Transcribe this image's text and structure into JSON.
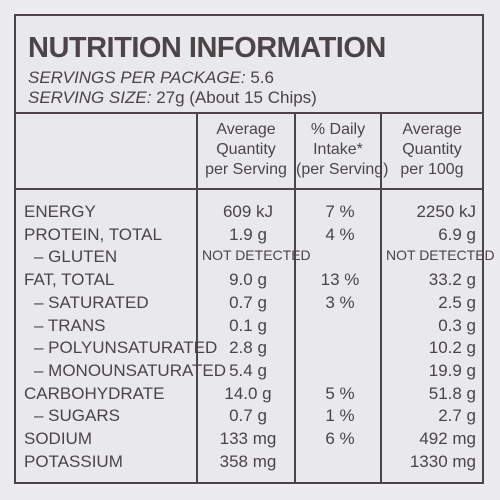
{
  "title": "NUTRITION INFORMATION",
  "servings": {
    "label": "SERVINGS PER PACKAGE:",
    "value": "5.6"
  },
  "serving_size": {
    "label": "SERVING SIZE:",
    "value": "27g (About 15 Chips)"
  },
  "columns": [
    {
      "lines": [
        "Average",
        "Quantity",
        "per Serving"
      ]
    },
    {
      "lines": [
        "% Daily",
        "Intake*",
        "(per Serving)"
      ]
    },
    {
      "lines": [
        "Average",
        "Quantity",
        "per 100g"
      ]
    }
  ],
  "rows": [
    {
      "name": "ENERGY",
      "per_serving": "609 kJ",
      "daily_intake": "7 %",
      "per_100g": "2250 kJ"
    },
    {
      "name": "PROTEIN, TOTAL",
      "per_serving": "1.9 g",
      "daily_intake": "4 %",
      "per_100g": "6.9 g"
    },
    {
      "name": "– GLUTEN",
      "per_serving": "NOT DETECTED",
      "daily_intake": "",
      "per_100g": "NOT DETECTED"
    },
    {
      "name": "FAT, TOTAL",
      "per_serving": "9.0 g",
      "daily_intake": "13 %",
      "per_100g": "33.2 g"
    },
    {
      "name": "– SATURATED",
      "per_serving": "0.7 g",
      "daily_intake": "3 %",
      "per_100g": "2.5 g"
    },
    {
      "name": "– TRANS",
      "per_serving": "0.1 g",
      "daily_intake": "",
      "per_100g": "0.3 g"
    },
    {
      "name": "– POLYUNSATURATED",
      "per_serving": "2.8 g",
      "daily_intake": "",
      "per_100g": "10.2 g"
    },
    {
      "name": "– MONOUNSATURATED",
      "per_serving": "5.4 g",
      "daily_intake": "",
      "per_100g": "19.9 g"
    },
    {
      "name": "CARBOHYDRATE",
      "per_serving": "14.0 g",
      "daily_intake": "5 %",
      "per_100g": "51.8 g"
    },
    {
      "name": "– SUGARS",
      "per_serving": "0.7 g",
      "daily_intake": "1 %",
      "per_100g": "2.7 g"
    },
    {
      "name": "SODIUM",
      "per_serving": "133 mg",
      "daily_intake": "6 %",
      "per_100g": "492 mg"
    },
    {
      "name": "POTASSIUM",
      "per_serving": "358 mg",
      "daily_intake": "",
      "per_100g": "1330 mg"
    }
  ]
}
